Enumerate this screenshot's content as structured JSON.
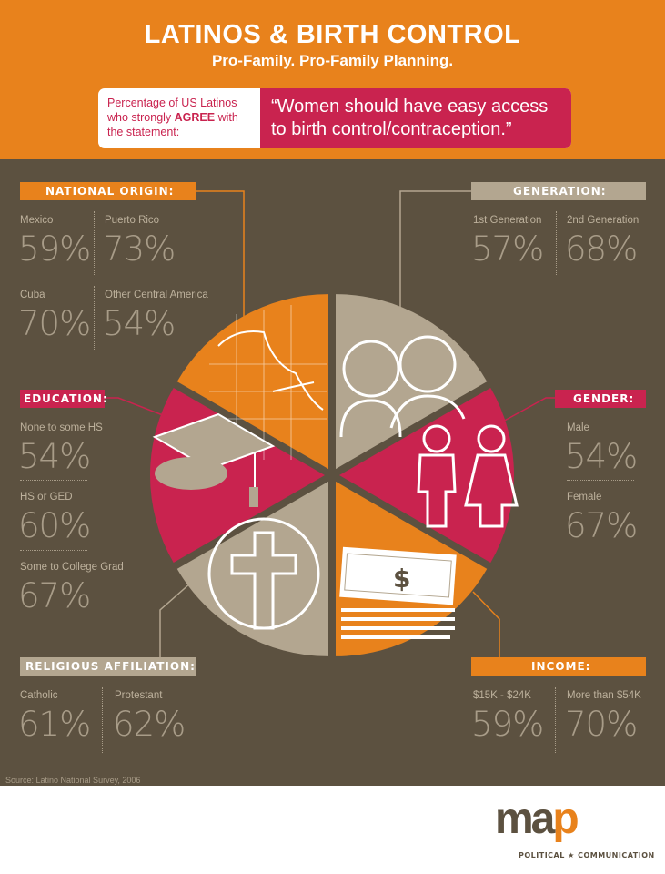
{
  "header": {
    "title": "LATINOS & BIRTH CONTROL",
    "subtitle": "Pro-Family.  Pro-Family Planning.",
    "intro_line1": "Percentage of US Latinos",
    "intro_line2_pre": "who strongly ",
    "intro_line2_bold": "AGREE",
    "intro_line2_post": " with",
    "intro_line3": "the statement:",
    "quote_line1": "“Women should have easy access",
    "quote_line2": "to birth control/contraception.”"
  },
  "national_origin": {
    "title": "NATIONAL ORIGIN:",
    "items": [
      {
        "label": "Mexico",
        "value": "59%"
      },
      {
        "label": "Puerto Rico",
        "value": "73%"
      },
      {
        "label": "Cuba",
        "value": "70%"
      },
      {
        "label": "Other Central America",
        "value": "54%"
      }
    ]
  },
  "generation": {
    "title": "GENERATION:",
    "items": [
      {
        "label": "1st Generation",
        "value": "57%"
      },
      {
        "label": "2nd Generation",
        "value": "68%"
      }
    ]
  },
  "education": {
    "title": "EDUCATION:",
    "items": [
      {
        "label": "None to some HS",
        "value": "54%"
      },
      {
        "label": "HS or GED",
        "value": "60%"
      },
      {
        "label": "Some to College Grad",
        "value": "67%"
      }
    ]
  },
  "gender": {
    "title": "GENDER:",
    "items": [
      {
        "label": "Male",
        "value": "54%"
      },
      {
        "label": "Female",
        "value": "67%"
      }
    ]
  },
  "religion": {
    "title": "RELIGIOUS AFFILIATION:",
    "items": [
      {
        "label": "Catholic",
        "value": "61%"
      },
      {
        "label": "Protestant",
        "value": "62%"
      }
    ]
  },
  "income": {
    "title": "INCOME:",
    "items": [
      {
        "label": "$15K - $24K",
        "value": "59%"
      },
      {
        "label": "More than $54K",
        "value": "70%"
      }
    ]
  },
  "source": "Source:  Latino National Survey, 2006",
  "logo": {
    "text": "map",
    "tagline": "POLITICAL ★ COMMUNICATION"
  },
  "colors": {
    "orange": "#e8821c",
    "crimson": "#c9234f",
    "tan": "#b3a690",
    "brown": "#5c5140"
  }
}
